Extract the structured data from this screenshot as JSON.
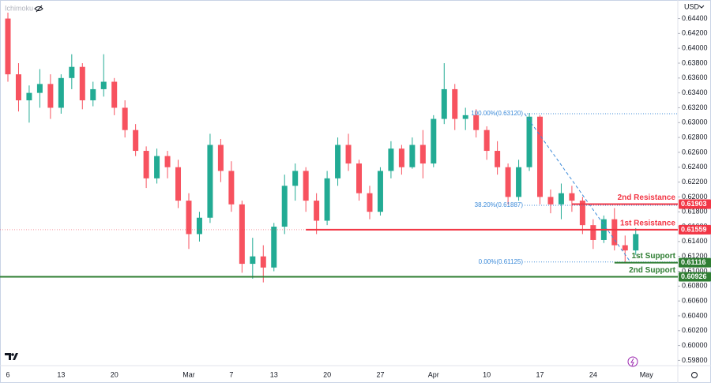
{
  "chart_data": {
    "type": "candlestick",
    "indicator": "Ichimoku",
    "currency": "USD",
    "categories": [
      "6",
      null,
      null,
      null,
      null,
      "13",
      null,
      null,
      null,
      null,
      "20",
      null,
      null,
      null,
      null,
      null,
      null,
      "Mar",
      null,
      null,
      null,
      "7",
      null,
      null,
      null,
      "13",
      null,
      null,
      null,
      null,
      "20",
      null,
      null,
      null,
      null,
      "27",
      null,
      null,
      null,
      null,
      "Apr",
      null,
      null,
      null,
      null,
      "10",
      null,
      null,
      null,
      null,
      "17",
      null,
      null,
      null,
      null,
      "24",
      null,
      null,
      null,
      null,
      "May"
    ],
    "open": [
      0.644,
      0.6365,
      0.633,
      0.634,
      0.6352,
      0.632,
      0.636,
      0.6375,
      0.633,
      0.6345,
      0.6355,
      0.632,
      0.629,
      0.6262,
      0.6225,
      0.6255,
      0.624,
      0.6195,
      0.615,
      0.6172,
      0.627,
      0.6235,
      0.619,
      0.611,
      0.612,
      0.6105,
      0.616,
      0.6215,
      0.6235,
      0.6195,
      0.6168,
      0.6225,
      0.627,
      0.6245,
      0.6205,
      0.618,
      0.6235,
      0.6265,
      0.624,
      0.627,
      0.6245,
      0.6305,
      0.6345,
      0.6305,
      0.631,
      0.629,
      0.6262,
      0.624,
      0.62,
      0.624,
      0.6308,
      0.62,
      0.619,
      0.6205,
      0.6195,
      0.6162,
      0.6142,
      0.617,
      0.6135,
      0.6128,
      null
    ],
    "high": [
      0.6448,
      0.638,
      0.635,
      0.6372,
      0.6365,
      0.6365,
      0.6392,
      0.638,
      0.6355,
      0.6392,
      0.636,
      0.633,
      0.6298,
      0.6268,
      0.6265,
      0.6262,
      0.625,
      0.6205,
      0.618,
      0.6285,
      0.6278,
      0.6248,
      0.6195,
      0.6145,
      0.6135,
      0.6165,
      0.623,
      0.6245,
      0.624,
      0.6205,
      0.6235,
      0.628,
      0.6285,
      0.625,
      0.6215,
      0.624,
      0.6275,
      0.627,
      0.628,
      0.629,
      0.631,
      0.638,
      0.6352,
      0.632,
      0.6318,
      0.6295,
      0.6275,
      0.6245,
      0.625,
      0.6313,
      0.631,
      0.621,
      0.6218,
      0.6215,
      0.62,
      0.617,
      0.6175,
      0.6185,
      0.6148,
      0.6158,
      null
    ],
    "low": [
      0.6355,
      0.6315,
      0.63,
      0.632,
      0.6305,
      0.6312,
      0.6345,
      0.6318,
      0.6322,
      0.6335,
      0.631,
      0.628,
      0.6255,
      0.6212,
      0.6218,
      0.6225,
      0.6185,
      0.613,
      0.614,
      0.6165,
      0.622,
      0.618,
      0.6098,
      0.609,
      0.6085,
      0.61,
      0.615,
      0.6195,
      0.618,
      0.615,
      0.6162,
      0.6215,
      0.6235,
      0.6195,
      0.617,
      0.6175,
      0.6225,
      0.623,
      0.6238,
      0.6225,
      0.624,
      0.6298,
      0.629,
      0.629,
      0.628,
      0.625,
      0.623,
      0.619,
      0.6195,
      0.6235,
      0.619,
      0.6178,
      0.617,
      0.618,
      0.615,
      0.613,
      0.6138,
      0.6128,
      0.6112,
      0.6122,
      null
    ],
    "close": [
      0.6365,
      0.633,
      0.634,
      0.6352,
      0.632,
      0.636,
      0.6375,
      0.633,
      0.6345,
      0.6355,
      0.632,
      0.629,
      0.6262,
      0.6225,
      0.6255,
      0.624,
      0.6195,
      0.615,
      0.6172,
      0.627,
      0.6235,
      0.619,
      0.611,
      0.612,
      0.6105,
      0.616,
      0.6215,
      0.6235,
      0.6195,
      0.6168,
      0.6225,
      0.627,
      0.6245,
      0.6205,
      0.618,
      0.6235,
      0.6265,
      0.624,
      0.627,
      0.6245,
      0.6305,
      0.6345,
      0.6305,
      0.631,
      0.629,
      0.6262,
      0.624,
      0.62,
      0.624,
      0.6308,
      0.62,
      0.619,
      0.6205,
      0.6195,
      0.6162,
      0.6142,
      0.617,
      0.6135,
      0.6128,
      0.615,
      null
    ],
    "up_color": "#22ab94",
    "down_color": "#f7525f",
    "ylim": [
      0.5973,
      0.6465
    ],
    "yticks": [
      {
        "value": 0.644,
        "label": "0.64400"
      },
      {
        "value": 0.642,
        "label": "0.64200"
      },
      {
        "value": 0.64,
        "label": "0.64000"
      },
      {
        "value": 0.638,
        "label": "0.63800"
      },
      {
        "value": 0.636,
        "label": "0.63600"
      },
      {
        "value": 0.634,
        "label": "0.63400"
      },
      {
        "value": 0.632,
        "label": "0.63200"
      },
      {
        "value": 0.63,
        "label": "0.63000"
      },
      {
        "value": 0.628,
        "label": "0.62800"
      },
      {
        "value": 0.626,
        "label": "0.62600"
      },
      {
        "value": 0.624,
        "label": "0.62400"
      },
      {
        "value": 0.622,
        "label": "0.62200"
      },
      {
        "value": 0.62,
        "label": "0.62000"
      },
      {
        "value": 0.618,
        "label": "0.61800"
      },
      {
        "value": 0.616,
        "label": "0.61600"
      },
      {
        "value": 0.614,
        "label": "0.61400"
      },
      {
        "value": 0.612,
        "label": "0.61200"
      },
      {
        "value": 0.61,
        "label": "0.61000"
      },
      {
        "value": 0.608,
        "label": "0.60800"
      },
      {
        "value": 0.606,
        "label": "0.60600"
      },
      {
        "value": 0.604,
        "label": "0.60400"
      },
      {
        "value": 0.602,
        "label": "0.60200"
      },
      {
        "value": 0.6,
        "label": "0.60000"
      },
      {
        "value": 0.598,
        "label": "0.59800"
      }
    ],
    "levels": [
      {
        "label": "2nd Resistance",
        "value": 0.61903,
        "value_label": "0.61903",
        "color": "#f23645"
      },
      {
        "label": "1st Resistance",
        "value": 0.61559,
        "value_label": "0.61559",
        "color": "#f23645"
      },
      {
        "label": "1st Support",
        "value": 0.61116,
        "value_label": "0.61116",
        "color": "#2e7d32"
      },
      {
        "label": "2nd Support",
        "value": 0.60926,
        "value_label": "0.60926",
        "color": "#2e7d32"
      }
    ],
    "fibonacci": [
      {
        "label": "100.00%(0.63120)",
        "value": 0.6312
      },
      {
        "label": "38.20%(0.61887)",
        "value": 0.61887
      },
      {
        "label": "0.00%(0.61125)",
        "value": 0.61125
      }
    ],
    "fib_color": "#3d8bd9"
  }
}
